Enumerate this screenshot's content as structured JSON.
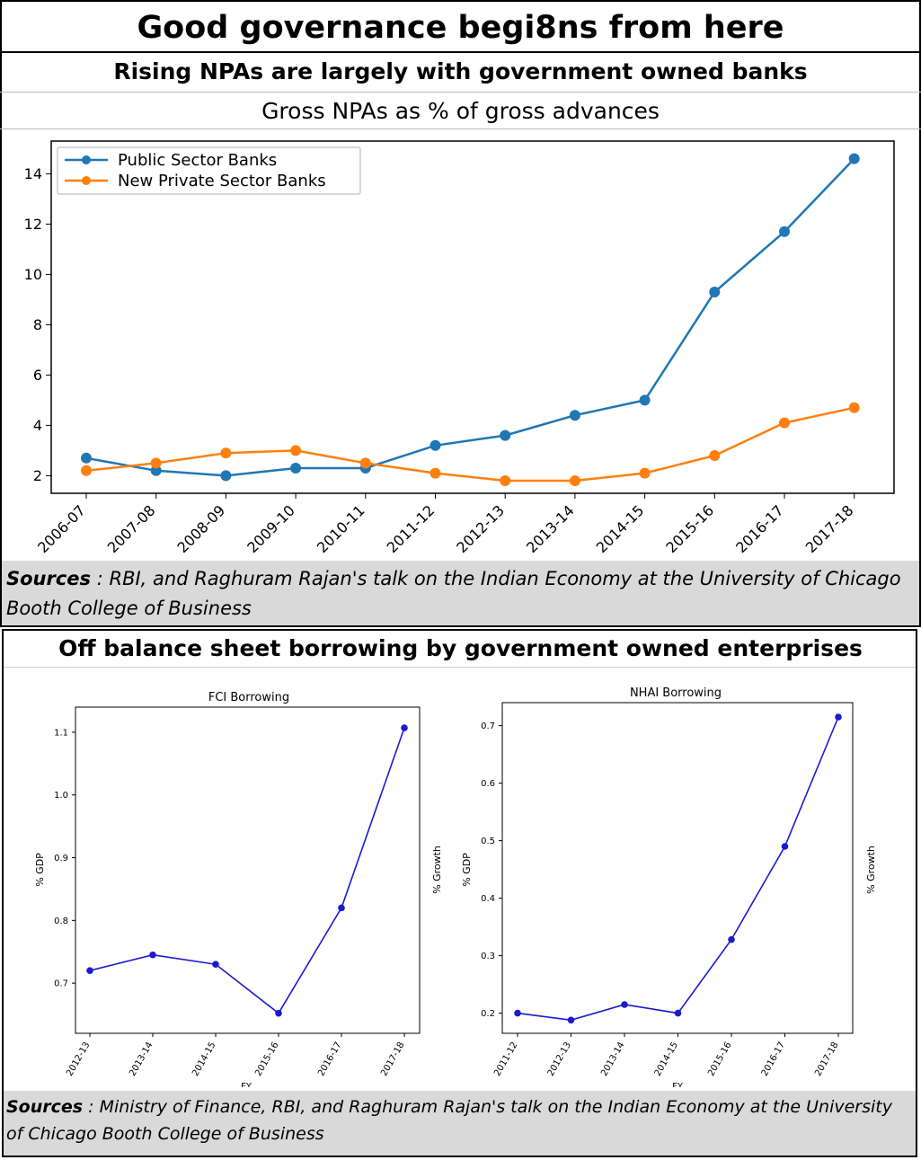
{
  "page": {
    "title": "Good governance begi8ns from here"
  },
  "section1": {
    "title": "Rising NPAs are largely with government owned banks",
    "subtitle": "Gross NPAs as % of gross advances",
    "sources_label": "Sources",
    "sources_text": " : RBI, and Raghuram Rajan's talk on the Indian Economy at the University of Chicago Booth College of Business"
  },
  "section2": {
    "title": "Off balance sheet borrowing by government owned enterprises",
    "sources_label": "Sources",
    "sources_text": " : Ministry of Finance, RBI, and Raghuram Rajan's talk on the Indian Economy at the University of Chicago Booth College of Business"
  },
  "colors": {
    "public": "#1f77b4",
    "private": "#ff7f0e",
    "small_line": "#1a1ad2",
    "sources_bg": "#d9d9d9"
  },
  "chart_data": [
    {
      "id": "npa",
      "type": "line",
      "title": "Gross NPAs as % of gross advances",
      "categories": [
        "2006-07",
        "2007-08",
        "2008-09",
        "2009-10",
        "2010-11",
        "2011-12",
        "2012-13",
        "2013-14",
        "2014-15",
        "2015-16",
        "2016-17",
        "2017-18"
      ],
      "series": [
        {
          "name": "Public Sector Banks",
          "values": [
            2.7,
            2.2,
            2.0,
            2.3,
            2.3,
            3.2,
            3.6,
            4.4,
            5.0,
            9.3,
            11.7,
            14.6
          ]
        },
        {
          "name": "New Private Sector Banks",
          "values": [
            2.2,
            2.5,
            2.9,
            3.0,
            2.5,
            2.1,
            1.8,
            1.8,
            2.1,
            2.8,
            4.1,
            4.7
          ]
        }
      ],
      "yticks": [
        2,
        4,
        6,
        8,
        10,
        12,
        14
      ],
      "ylim": [
        1.3,
        15.3
      ],
      "legend": "top-left"
    },
    {
      "id": "fci",
      "type": "line",
      "title": "FCI Borrowing",
      "ylabel": "% GDP",
      "ylabel_right": "% Growth",
      "xlabel": "FY",
      "categories": [
        "2012-13",
        "2013-14",
        "2014-15",
        "2015-16",
        "2016-17",
        "2017-18"
      ],
      "values": [
        0.72,
        0.745,
        0.73,
        0.652,
        0.82,
        1.107
      ],
      "yticks": [
        0.7,
        0.8,
        0.9,
        1.0,
        1.1
      ],
      "ytick_labels": [
        "0.7",
        "0.8",
        "0.9",
        "1.0",
        "1.1"
      ],
      "ylim": [
        0.62,
        1.14
      ]
    },
    {
      "id": "nhai",
      "type": "line",
      "title": "NHAI Borrowing",
      "ylabel": "% GDP",
      "ylabel_right": "% Growth",
      "xlabel": "FY",
      "categories": [
        "2011-12",
        "2012-13",
        "2013-14",
        "2014-15",
        "2015-16",
        "2016-17",
        "2017-18"
      ],
      "values": [
        0.2,
        0.188,
        0.215,
        0.2,
        0.328,
        0.49,
        0.715
      ],
      "yticks": [
        0.2,
        0.3,
        0.4,
        0.5,
        0.6,
        0.7
      ],
      "ytick_labels": [
        "0.2",
        "0.3",
        "0.4",
        "0.5",
        "0.6",
        "0.7"
      ],
      "ylim": [
        0.165,
        0.74
      ]
    }
  ]
}
